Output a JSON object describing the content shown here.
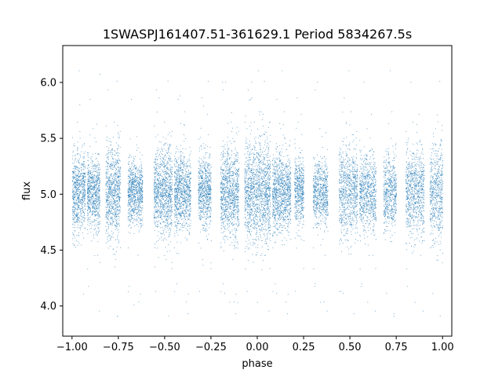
{
  "chart_data": {
    "type": "scatter",
    "title": "1SWASPJ161407.51-361629.1 Period 5834267.5s",
    "xlabel": "phase",
    "ylabel": "flux",
    "xlim": [
      -1.05,
      1.05
    ],
    "ylim": [
      3.73,
      6.33
    ],
    "xticks": [
      -1.0,
      -0.75,
      -0.5,
      -0.25,
      0.0,
      0.25,
      0.5,
      0.75,
      1.0
    ],
    "xtick_labels": [
      "−1.00",
      "−0.75",
      "−0.50",
      "−0.25",
      "0.00",
      "0.25",
      "0.50",
      "0.75",
      "1.00"
    ],
    "yticks": [
      4.0,
      4.5,
      5.0,
      5.5,
      6.0
    ],
    "ytick_labels": [
      "4.0",
      "4.5",
      "5.0",
      "5.5",
      "6.0"
    ],
    "grid": false,
    "marker_color": "#1f77b4",
    "series": [
      {
        "point_count": 14000,
        "baseline_flux": 5.02,
        "segments": [
          {
            "phase_range": [
              -1.0,
              -0.93
            ],
            "flux_spread": 0.18
          },
          {
            "phase_range": [
              -0.92,
              -0.85
            ],
            "flux_spread": 0.16
          },
          {
            "phase_range": [
              -0.82,
              -0.74
            ],
            "flux_spread": 0.2
          },
          {
            "phase_range": [
              -0.7,
              -0.62
            ],
            "flux_spread": 0.14
          },
          {
            "phase_range": [
              -0.56,
              -0.46
            ],
            "flux_spread": 0.2
          },
          {
            "phase_range": [
              -0.45,
              -0.36
            ],
            "flux_spread": 0.17
          },
          {
            "phase_range": [
              -0.32,
              -0.25
            ],
            "flux_spread": 0.16
          },
          {
            "phase_range": [
              -0.2,
              -0.1
            ],
            "flux_spread": 0.2
          },
          {
            "phase_range": [
              -0.07,
              0.07
            ],
            "flux_spread": 0.23
          },
          {
            "phase_range": [
              0.08,
              0.18
            ],
            "flux_spread": 0.17
          },
          {
            "phase_range": [
              0.2,
              0.25
            ],
            "flux_spread": 0.16
          },
          {
            "phase_range": [
              0.3,
              0.38
            ],
            "flux_spread": 0.14
          },
          {
            "phase_range": [
              0.44,
              0.54
            ],
            "flux_spread": 0.2
          },
          {
            "phase_range": [
              0.55,
              0.64
            ],
            "flux_spread": 0.17
          },
          {
            "phase_range": [
              0.68,
              0.75
            ],
            "flux_spread": 0.16
          },
          {
            "phase_range": [
              0.8,
              0.9
            ],
            "flux_spread": 0.2
          },
          {
            "phase_range": [
              0.93,
              1.0
            ],
            "flux_spread": 0.22
          }
        ]
      }
    ]
  }
}
